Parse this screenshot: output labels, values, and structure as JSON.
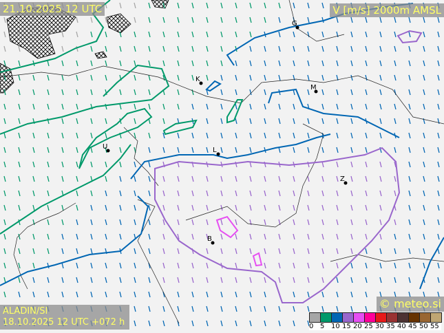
{
  "header": {
    "valid_time": "21.10.2025 12 UTC",
    "field": "V [m/s] 2000m AMSL"
  },
  "footer": {
    "model": "ALADIN/SI",
    "run": "18.10.2025 12 UTC +072 h",
    "brand": "© meteo.si"
  },
  "legend": {
    "colors": [
      "#a6a6a6",
      "#00996a",
      "#0066b3",
      "#9966cc",
      "#e64ff2",
      "#ff0099",
      "#e61a1a",
      "#993333",
      "#4d3333",
      "#663300",
      "#996633",
      "#bfa673"
    ],
    "ticks": [
      "0",
      "5",
      "10",
      "15",
      "20",
      "25",
      "30",
      "35",
      "40",
      "45",
      "50",
      "55"
    ]
  },
  "cities": [
    {
      "label": "G"
    },
    {
      "label": "K"
    },
    {
      "label": "M"
    },
    {
      "label": "U"
    },
    {
      "label": "L"
    },
    {
      "label": "Z"
    },
    {
      "label": "B"
    }
  ],
  "colors": {
    "green": "#00996a",
    "blue": "#0066b3",
    "purple": "#9966cc",
    "magenta": "#e64ff2",
    "gray": "#a6a6a6"
  }
}
